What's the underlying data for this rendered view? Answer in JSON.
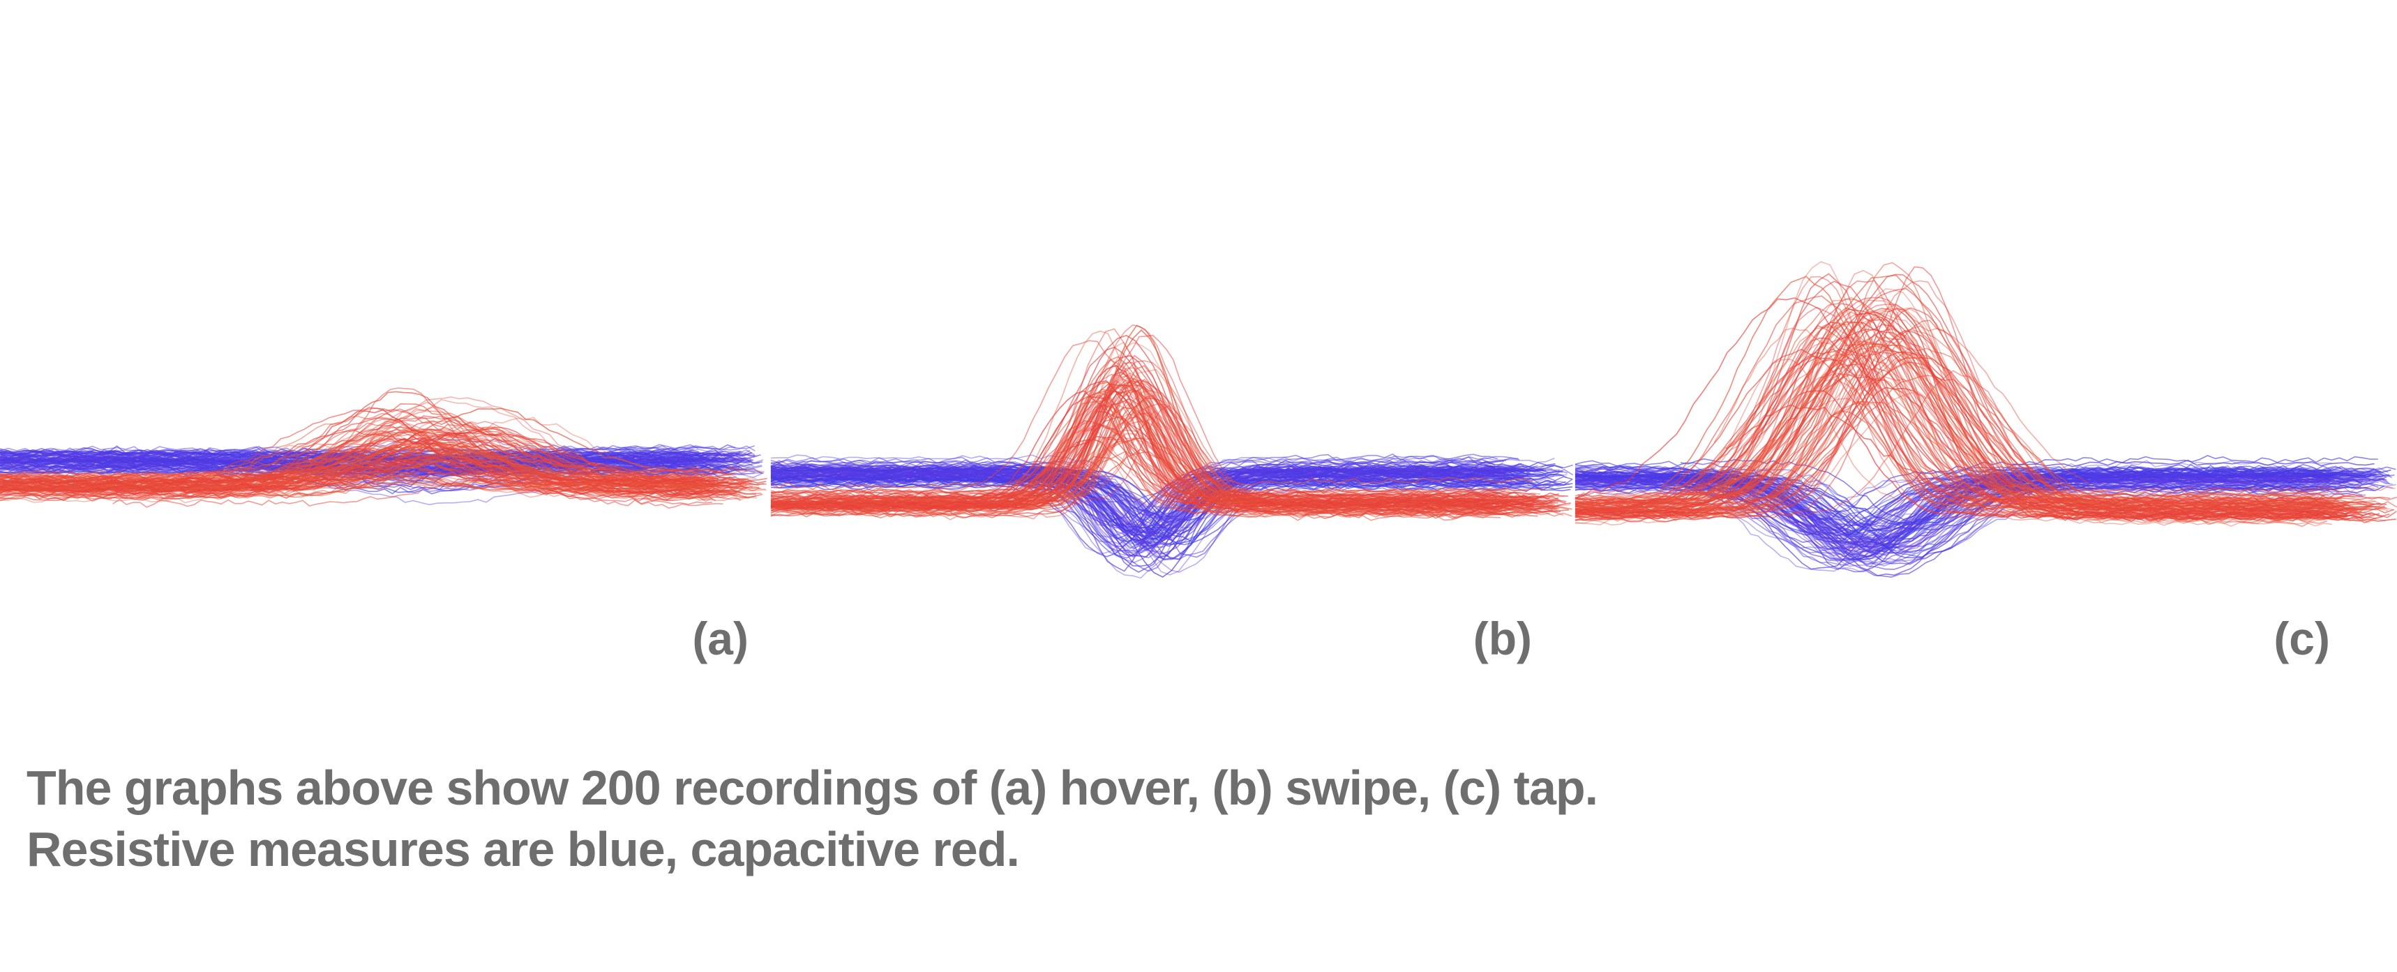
{
  "colors": {
    "resistive": "#3a3ae8",
    "capacitive": "#e83a3a",
    "label": "#6e6e6e"
  },
  "caption": {
    "line1": "The graphs above show 200 recordings of (a) hover, (b) swipe, (c) tap.",
    "line2": "Resistive measures are blue, capacitive red."
  },
  "chart_data": [
    {
      "type": "line",
      "panel_label": "(a)",
      "gesture": "hover",
      "recordings": 200,
      "axes_visible": false,
      "grid": false,
      "series": [
        {
          "name": "Resistive",
          "color": "#3a3ae8",
          "baseline": 0.0,
          "event_center": 0.56,
          "event_width": 0.14,
          "peak_mean": -0.15,
          "peak_spread": 0.35,
          "count": 100
        },
        {
          "name": "Capacitive",
          "color": "#e83a3a",
          "baseline": -0.45,
          "event_center": 0.56,
          "event_width": 0.14,
          "peak_mean": 0.9,
          "peak_spread": 0.8,
          "count": 100
        }
      ]
    },
    {
      "type": "line",
      "panel_label": "(b)",
      "gesture": "swipe",
      "recordings": 200,
      "axes_visible": false,
      "grid": false,
      "series": [
        {
          "name": "Resistive",
          "color": "#3a3ae8",
          "baseline": 0.0,
          "event_center": 0.47,
          "event_width": 0.07,
          "peak_mean": -1.3,
          "peak_spread": 0.6,
          "count": 100
        },
        {
          "name": "Capacitive",
          "color": "#e83a3a",
          "baseline": -0.55,
          "event_center": 0.44,
          "event_width": 0.07,
          "peak_mean": 2.1,
          "peak_spread": 1.0,
          "count": 100
        }
      ]
    },
    {
      "type": "line",
      "panel_label": "(c)",
      "gesture": "tap",
      "recordings": 200,
      "axes_visible": false,
      "grid": false,
      "series": [
        {
          "name": "Resistive",
          "color": "#3a3ae8",
          "baseline": 0.0,
          "event_center": 0.36,
          "event_width": 0.11,
          "peak_mean": -1.3,
          "peak_spread": 0.5,
          "count": 100
        },
        {
          "name": "Capacitive",
          "color": "#e83a3a",
          "baseline": -0.55,
          "event_center": 0.36,
          "event_width": 0.12,
          "peak_mean": 3.4,
          "peak_spread": 1.4,
          "count": 100
        }
      ]
    }
  ]
}
